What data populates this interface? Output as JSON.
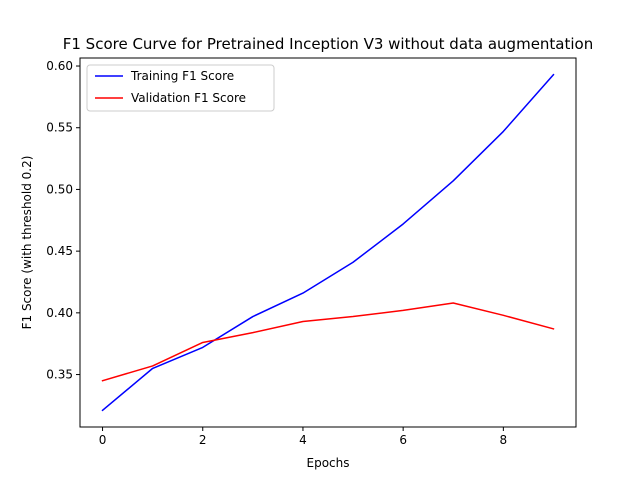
{
  "chart_data": {
    "type": "line",
    "title": "F1 Score Curve for Pretrained Inception V3 without data augmentation",
    "xlabel": "Epochs",
    "ylabel": "F1 Score (with threshold 0.2)",
    "x": [
      0,
      1,
      2,
      3,
      4,
      5,
      6,
      7,
      8,
      9
    ],
    "xlim": [
      -0.45,
      9.45
    ],
    "ylim": [
      0.3075,
      0.6065
    ],
    "xticks": [
      0,
      2,
      4,
      6,
      8
    ],
    "yticks": [
      0.35,
      0.4,
      0.45,
      0.5,
      0.55,
      0.6
    ],
    "xtick_labels": [
      "0",
      "2",
      "4",
      "6",
      "8"
    ],
    "ytick_labels": [
      "0.35",
      "0.40",
      "0.45",
      "0.50",
      "0.55",
      "0.60"
    ],
    "grid": false,
    "legend_position": "top-left",
    "series": [
      {
        "name": "Training F1 Score",
        "color": "#0000ff",
        "values": [
          0.321,
          0.355,
          0.372,
          0.397,
          0.416,
          0.441,
          0.472,
          0.507,
          0.547,
          0.593
        ]
      },
      {
        "name": "Validation F1 Score",
        "color": "#ff0000",
        "values": [
          0.345,
          0.357,
          0.376,
          0.384,
          0.393,
          0.397,
          0.402,
          0.408,
          0.398,
          0.387
        ]
      }
    ]
  }
}
